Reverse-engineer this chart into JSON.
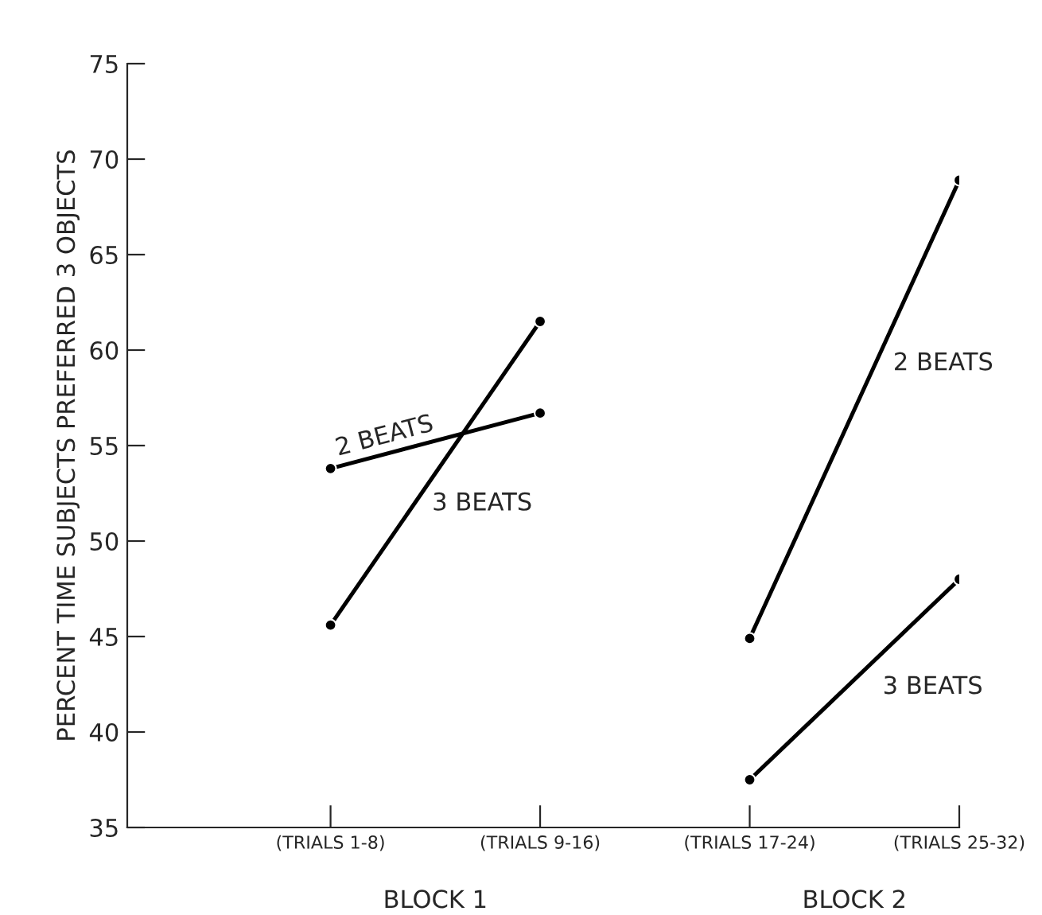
{
  "chart_data": {
    "type": "line",
    "ylabel": "PERCENT TIME SUBJECTS PREFERRED 3 OBJECTS",
    "categories": [
      "(TRIALS 1-8)",
      "(TRIALS 9-16)",
      "(TRIALS 17-24)",
      "(TRIALS 25-32)"
    ],
    "series": [
      {
        "name": "2 BEATS",
        "color": "#000000",
        "values": [
          53.8,
          56.7,
          null,
          null
        ]
      },
      {
        "name": "3 BEATS",
        "color": "#000000",
        "values": [
          45.6,
          61.5,
          null,
          null
        ]
      },
      {
        "name": "2 BEATS",
        "color": "#000000",
        "values": [
          null,
          null,
          44.9,
          68.9
        ]
      },
      {
        "name": "3 BEATS",
        "color": "#000000",
        "values": [
          null,
          null,
          37.5,
          48.0
        ]
      }
    ],
    "annotations": [
      "BLOCK 1",
      "BLOCK 2"
    ],
    "ylim": [
      35,
      75
    ],
    "yticks": [
      35,
      40,
      45,
      50,
      55,
      60,
      65,
      70,
      75
    ],
    "marker": "circle",
    "line_style": "solid",
    "grid": false
  }
}
